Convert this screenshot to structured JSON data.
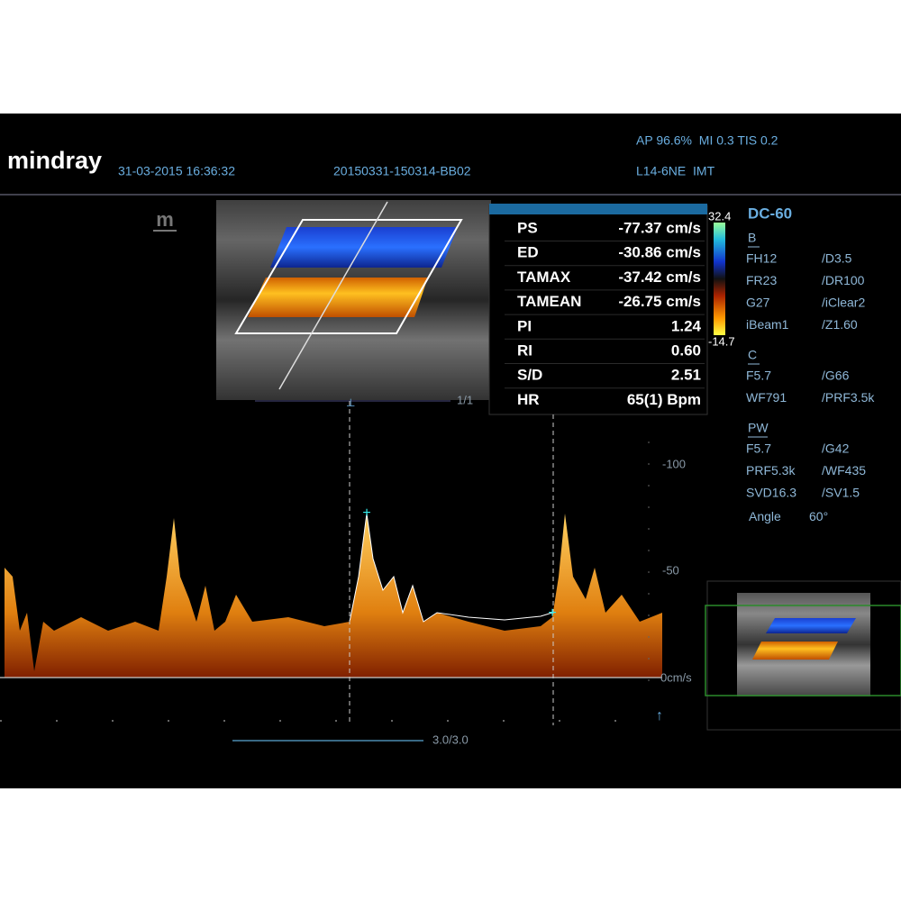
{
  "header": {
    "brand": "mindray",
    "datetime": "31-03-2015 16:36:32",
    "exam_id": "20150331-150314-BB02",
    "power": "AP 96.6%  MI 0.3 TIS 0.2",
    "probe": "L14-6NE  IMT"
  },
  "side_icon": "m",
  "image_counter": "1/1",
  "measurements": [
    [
      "PS",
      "-77.37 cm/s"
    ],
    [
      "ED",
      "-30.86 cm/s"
    ],
    [
      "TAMAX",
      "-37.42 cm/s"
    ],
    [
      "TAMEAN",
      "-26.75 cm/s"
    ],
    [
      "PI",
      "1.24"
    ],
    [
      "RI",
      "0.60"
    ],
    [
      "S/D",
      "2.51"
    ],
    [
      "HR",
      "65(1) Bpm"
    ]
  ],
  "colorbar": {
    "max": "32.4",
    "min": "-14.7"
  },
  "params": {
    "mode": "DC-60",
    "sections": [
      {
        "title": "B",
        "rows": [
          [
            "FH12",
            "/D3.5"
          ],
          [
            "FR23",
            "/DR100"
          ],
          [
            "G27",
            "/iClear2"
          ],
          [
            "iBeam1",
            "/Z1.60"
          ]
        ]
      },
      {
        "title": "C",
        "rows": [
          [
            "F5.7",
            "/G66"
          ],
          [
            "WF791",
            "/PRF3.5k"
          ]
        ]
      },
      {
        "title": "PW",
        "rows": [
          [
            "F5.7",
            "/G42"
          ],
          [
            "PRF5.3k",
            "/WF435"
          ],
          [
            "SVD16.3",
            "/SV1.5"
          ],
          [
            "Angle",
            "60°"
          ]
        ]
      }
    ]
  },
  "spectrum": {
    "scale_labels": [
      "-100",
      "-50",
      "0cm/s"
    ],
    "sweep": "3.0/3.0"
  }
}
